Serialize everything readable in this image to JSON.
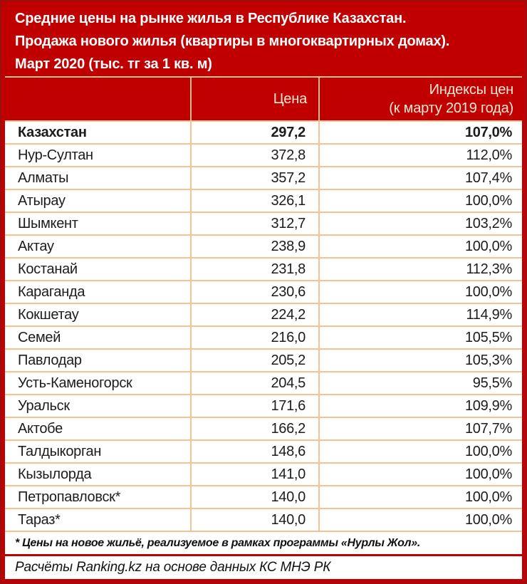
{
  "colors": {
    "brand_red": "#c00000",
    "frame_dark_red": "#9a100f",
    "grid_peach": "#f6c28f",
    "header_text": "#fae8d4",
    "body_text": "#1c1c1c"
  },
  "title": {
    "line1": "Средние цены на рынке жилья в Республике Казахстан.",
    "line2": "Продажа нового жилья (квартиры в многоквартирных домах).",
    "line3": "Март 2020 (тыс. тг за 1 кв. м)"
  },
  "header": {
    "region_label": "",
    "price_label": "Цена",
    "index_label_line1": "Индексы цен",
    "index_label_line2": "(к марту 2019 года)"
  },
  "chart_data": {
    "type": "table",
    "title": "Средние цены на рынке жилья в Республике Казахстан. Продажа нового жилья (квартиры в многоквартирных домах). Март 2020 (тыс. тг за 1 кв. м)",
    "columns": [
      "",
      "Цена",
      "Индексы цен (к марту 2019 года)"
    ],
    "rows": [
      {
        "region": "Казахстан",
        "price": "297,2",
        "price_value": 297.2,
        "index": "107,0%",
        "index_value": 107.0,
        "bold": true
      },
      {
        "region": "Нур-Султан",
        "price": "372,8",
        "price_value": 372.8,
        "index": "112,0%",
        "index_value": 112.0,
        "bold": false
      },
      {
        "region": "Алматы",
        "price": "357,2",
        "price_value": 357.2,
        "index": "107,4%",
        "index_value": 107.4,
        "bold": false
      },
      {
        "region": "Атырау",
        "price": "326,1",
        "price_value": 326.1,
        "index": "100,0%",
        "index_value": 100.0,
        "bold": false
      },
      {
        "region": "Шымкент",
        "price": "312,7",
        "price_value": 312.7,
        "index": "103,2%",
        "index_value": 103.2,
        "bold": false
      },
      {
        "region": "Актау",
        "price": "238,9",
        "price_value": 238.9,
        "index": "100,0%",
        "index_value": 100.0,
        "bold": false
      },
      {
        "region": "Костанай",
        "price": "231,8",
        "price_value": 231.8,
        "index": "112,3%",
        "index_value": 112.3,
        "bold": false
      },
      {
        "region": "Караганда",
        "price": "230,6",
        "price_value": 230.6,
        "index": "100,0%",
        "index_value": 100.0,
        "bold": false
      },
      {
        "region": "Кокшетау",
        "price": "224,2",
        "price_value": 224.2,
        "index": "114,9%",
        "index_value": 114.9,
        "bold": false
      },
      {
        "region": "Семей",
        "price": "216,0",
        "price_value": 216.0,
        "index": "105,5%",
        "index_value": 105.5,
        "bold": false
      },
      {
        "region": "Павлодар",
        "price": "205,2",
        "price_value": 205.2,
        "index": "105,3%",
        "index_value": 105.3,
        "bold": false
      },
      {
        "region": "Усть-Каменогорск",
        "price": "204,5",
        "price_value": 204.5,
        "index": "95,5%",
        "index_value": 95.5,
        "bold": false
      },
      {
        "region": "Уральск",
        "price": "171,6",
        "price_value": 171.6,
        "index": "109,9%",
        "index_value": 109.9,
        "bold": false
      },
      {
        "region": "Актобе",
        "price": "166,2",
        "price_value": 166.2,
        "index": "107,7%",
        "index_value": 107.7,
        "bold": false
      },
      {
        "region": "Талдыкорган",
        "price": "148,6",
        "price_value": 148.6,
        "index": "100,0%",
        "index_value": 100.0,
        "bold": false
      },
      {
        "region": "Кызылорда",
        "price": "141,0",
        "price_value": 141.0,
        "index": "100,0%",
        "index_value": 100.0,
        "bold": false
      },
      {
        "region": "Петропавловск*",
        "price": "140,0",
        "price_value": 140.0,
        "index": "100,0%",
        "index_value": 100.0,
        "bold": false
      },
      {
        "region": "Тараз*",
        "price": "140,0",
        "price_value": 140.0,
        "index": "100,0%",
        "index_value": 100.0,
        "bold": false
      }
    ]
  },
  "footnote": "* Цены на новое жильё, реализуемое в рамках программы «Нурлы Жол».",
  "source": "Расчёты Ranking.kz на основе данных КС МНЭ РК"
}
